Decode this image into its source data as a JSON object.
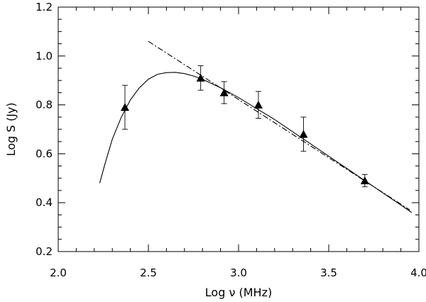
{
  "chart_data": {
    "type": "scatter",
    "title": "",
    "xlabel": "Log ν (MHz)",
    "ylabel": "Log S (Jy)",
    "xlim": [
      2.0,
      4.0
    ],
    "ylim": [
      0.2,
      1.2
    ],
    "xticks": [
      "2.0",
      "2.5",
      "3.0",
      "3.5",
      "4.0"
    ],
    "yticks": [
      "0.2",
      "0.4",
      "0.6",
      "0.8",
      "1.0",
      "1.2"
    ],
    "grid": false,
    "series": [
      {
        "marker": "triangle",
        "color": "#000000",
        "points": [
          {
            "x": 2.37,
            "y": 0.79,
            "err": 0.09
          },
          {
            "x": 2.79,
            "y": 0.91,
            "err": 0.05
          },
          {
            "x": 2.92,
            "y": 0.85,
            "err": 0.045
          },
          {
            "x": 3.11,
            "y": 0.8,
            "err": 0.055
          },
          {
            "x": 3.36,
            "y": 0.68,
            "err": 0.07
          },
          {
            "x": 3.7,
            "y": 0.49,
            "err": 0.025
          }
        ]
      },
      {
        "line_style": "solid",
        "color": "#000000",
        "points": [
          {
            "x": 2.23,
            "y": 0.48
          },
          {
            "x": 2.26,
            "y": 0.56
          },
          {
            "x": 2.3,
            "y": 0.66
          },
          {
            "x": 2.35,
            "y": 0.75
          },
          {
            "x": 2.4,
            "y": 0.82
          },
          {
            "x": 2.45,
            "y": 0.87
          },
          {
            "x": 2.5,
            "y": 0.905
          },
          {
            "x": 2.55,
            "y": 0.925
          },
          {
            "x": 2.6,
            "y": 0.932
          },
          {
            "x": 2.65,
            "y": 0.933
          },
          {
            "x": 2.7,
            "y": 0.928
          },
          {
            "x": 2.75,
            "y": 0.918
          },
          {
            "x": 2.8,
            "y": 0.905
          },
          {
            "x": 2.9,
            "y": 0.87
          },
          {
            "x": 3.0,
            "y": 0.83
          },
          {
            "x": 3.1,
            "y": 0.785
          },
          {
            "x": 3.2,
            "y": 0.74
          },
          {
            "x": 3.3,
            "y": 0.69
          },
          {
            "x": 3.4,
            "y": 0.64
          },
          {
            "x": 3.5,
            "y": 0.59
          },
          {
            "x": 3.6,
            "y": 0.54
          },
          {
            "x": 3.7,
            "y": 0.49
          },
          {
            "x": 3.8,
            "y": 0.44
          },
          {
            "x": 3.9,
            "y": 0.39
          },
          {
            "x": 3.96,
            "y": 0.36
          }
        ]
      },
      {
        "line_style": "dash-dot",
        "color": "#000000",
        "points": [
          {
            "x": 2.5,
            "y": 1.06
          },
          {
            "x": 3.95,
            "y": 0.37
          }
        ]
      }
    ]
  }
}
